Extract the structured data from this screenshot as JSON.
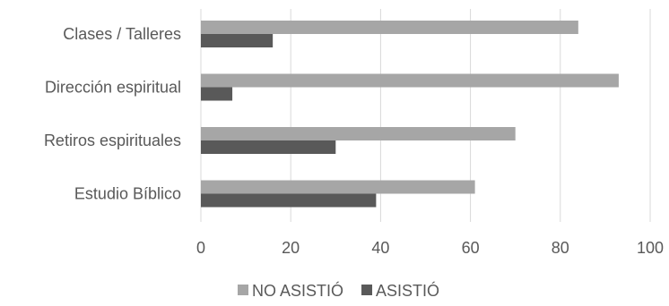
{
  "chart_data": {
    "type": "bar",
    "orientation": "horizontal",
    "categories": [
      "Clases / Talleres",
      "Dirección espiritual",
      "Retiros espirituales",
      "Estudio Bíblico"
    ],
    "series": [
      {
        "name": "NO ASISTIÓ",
        "color": "#A6A6A6",
        "values": [
          84,
          93,
          70,
          61
        ]
      },
      {
        "name": "ASISTIÓ",
        "color": "#595959",
        "values": [
          16,
          7,
          30,
          39
        ]
      }
    ],
    "xlim": [
      0,
      100
    ],
    "xticks": [
      "0",
      "20",
      "40",
      "60",
      "80",
      "100"
    ],
    "xtick_values": [
      0,
      20,
      40,
      60,
      80,
      100
    ],
    "grid": true,
    "legend_position": "bottom"
  }
}
